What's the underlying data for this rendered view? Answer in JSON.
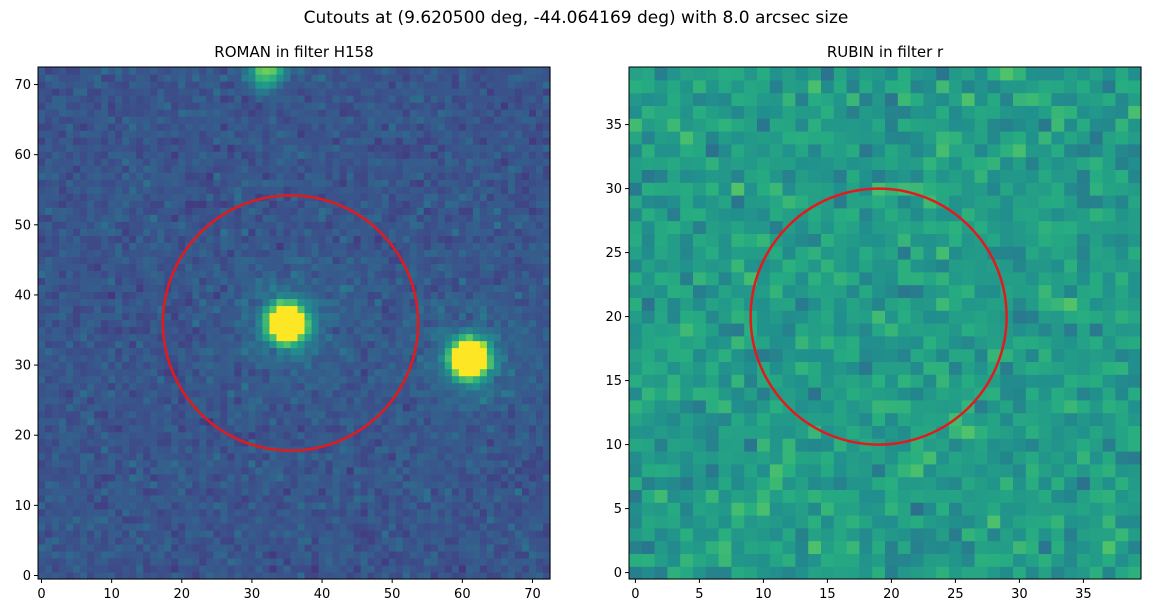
{
  "figure": {
    "suptitle": "Cutouts at (9.620500 deg, -44.064169 deg) with 8.0 arcsec size"
  },
  "chart_data": [
    {
      "type": "heatmap",
      "title": "ROMAN in filter H158",
      "grid_size": 73,
      "xlim": [
        -0.5,
        72.5
      ],
      "ylim": [
        -0.5,
        72.5
      ],
      "xticks": [
        0,
        10,
        20,
        30,
        40,
        50,
        60,
        70
      ],
      "yticks": [
        0,
        10,
        20,
        30,
        40,
        50,
        60,
        70
      ],
      "colormap": "viridis",
      "sources": [
        {
          "x": 35,
          "y": 36,
          "brightness": "saturated",
          "label": "central source"
        },
        {
          "x": 61,
          "y": 31,
          "brightness": "saturated",
          "label": "neighbour source"
        },
        {
          "x": 32,
          "y": 72,
          "brightness": "moderate",
          "label": "edge source"
        }
      ],
      "circle": {
        "center_x": 35.5,
        "center_y": 36,
        "radius": 18.2,
        "color": "#e31a1c"
      }
    },
    {
      "type": "heatmap",
      "title": "RUBIN in filter r",
      "grid_size": 40,
      "xlim": [
        -0.5,
        39.5
      ],
      "ylim": [
        -0.5,
        39.5
      ],
      "xticks": [
        0,
        5,
        10,
        15,
        20,
        25,
        30,
        35
      ],
      "yticks": [
        0,
        5,
        10,
        15,
        20,
        25,
        30,
        35
      ],
      "colormap": "viridis",
      "circle": {
        "center_x": 19,
        "center_y": 20,
        "radius": 10,
        "color": "#e31a1c"
      }
    }
  ],
  "colors": {
    "viridis_dark": "#440154",
    "viridis_blue": "#3b528b",
    "viridis_teal": "#21918c",
    "viridis_green": "#5ec962",
    "viridis_yellow": "#fde725",
    "circle": "#e31a1c"
  }
}
